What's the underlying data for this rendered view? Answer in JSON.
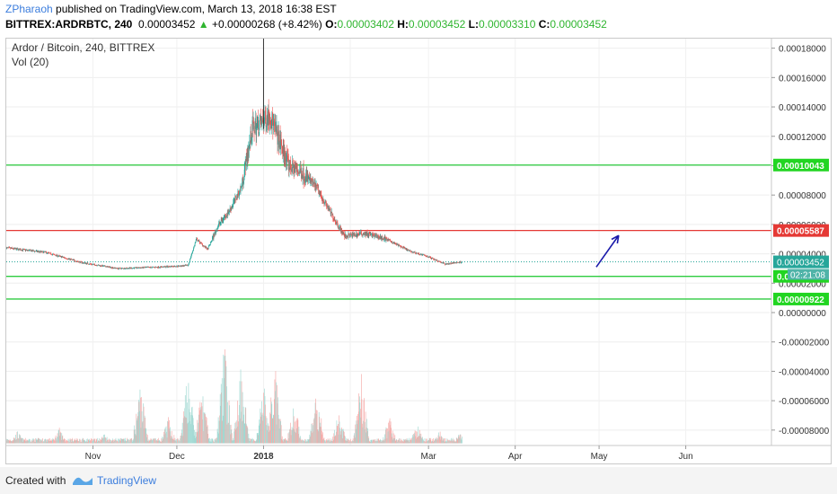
{
  "header": {
    "author": "ZPharaoh",
    "published_text": "published on TradingView.com, March 13, 2018 16:38 EST",
    "symbol": "BITTREX:ARDRBTC, 240",
    "last_price": "0.00003452",
    "triangle": "▲",
    "change": "+0.00000268 (+8.42%)",
    "o_label": "O:",
    "o_value": "0.00003402",
    "h_label": "H:",
    "h_value": "0.00003452",
    "l_label": "L:",
    "l_value": "0.00003310",
    "c_label": "C:",
    "c_value": "0.00003452"
  },
  "legend": {
    "title": "Ardor / Bitcoin, 240, BITTREX",
    "vol": "Vol (20)"
  },
  "footer": {
    "created_with": "Created with",
    "brand": "TradingView"
  },
  "colors": {
    "up": "#26a69a",
    "down": "#ef5350",
    "green_line": "#2ecc40",
    "red_line": "#e53935",
    "arrow": "#1a1aaa",
    "price_tag": "#26a69a"
  },
  "chart_data": {
    "type": "candlestick",
    "x_tick_labels": [
      "Nov",
      "Dec",
      "2018",
      "Mar",
      "Apr",
      "May",
      "Jun"
    ],
    "y_tick_labels": [
      "0.00018000",
      "0.00016000",
      "0.00014000",
      "0.00012000",
      "0.00010000",
      "0.00008000",
      "0.00006000",
      "0.00004000",
      "0.00002000",
      "0.00000000",
      "-0.00002000",
      "-0.00004000",
      "-0.00006000",
      "-0.00008000"
    ],
    "y_tick_values": [
      0.00018,
      0.00016,
      0.00014,
      0.00012,
      0.0001,
      8e-05,
      6e-05,
      4e-05,
      2e-05,
      0,
      -2e-05,
      -4e-05,
      -6e-05,
      -8e-05
    ],
    "ylim": [
      -9.05e-05,
      0.0001865
    ],
    "x_range_months": [
      "Oct 2017",
      "Jul 2018"
    ],
    "price_keypoints": [
      [
        "2017-10-01",
        4.4e-05
      ],
      [
        "2017-10-15",
        4.1e-05
      ],
      [
        "2017-10-28",
        3.4e-05
      ],
      [
        "2017-11-10",
        3e-05
      ],
      [
        "2017-11-25",
        3.1e-05
      ],
      [
        "2017-12-05",
        3.2e-05
      ],
      [
        "2017-12-08",
        5e-05
      ],
      [
        "2017-12-12",
        4.3e-05
      ],
      [
        "2017-12-16",
        6e-05
      ],
      [
        "2017-12-20",
        7e-05
      ],
      [
        "2017-12-24",
        8.5e-05
      ],
      [
        "2017-12-28",
        0.000125
      ],
      [
        "2018-01-01",
        0.00013
      ],
      [
        "2018-01-03",
        0.000135
      ],
      [
        "2018-01-06",
        0.00012
      ],
      [
        "2018-01-10",
        0.0001
      ],
      [
        "2018-01-15",
        9.5e-05
      ],
      [
        "2018-01-20",
        8.5e-05
      ],
      [
        "2018-01-25",
        6.8e-05
      ],
      [
        "2018-01-30",
        5.2e-05
      ],
      [
        "2018-02-06",
        5.4e-05
      ],
      [
        "2018-02-14",
        5e-05
      ],
      [
        "2018-02-22",
        4.2e-05
      ],
      [
        "2018-03-01",
        3.8e-05
      ],
      [
        "2018-03-07",
        3.3e-05
      ],
      [
        "2018-03-13",
        3.45e-05
      ]
    ],
    "peak_high": 0.000187,
    "peak_date": "2018-01-01",
    "horizontal_levels": [
      {
        "value": 0.00010043,
        "label": "0.00010043",
        "color": "#2ecc40"
      },
      {
        "value": 5.587e-05,
        "label": "0.00005587",
        "color": "#e53935"
      },
      {
        "value": 2.465e-05,
        "label": "0.00002465",
        "color": "#2ecc40"
      },
      {
        "value": 9.22e-06,
        "label": "0.00000922",
        "color": "#2ecc40"
      }
    ],
    "current_price": {
      "value": 3.452e-05,
      "label": "0.00003452",
      "countdown": "02:21:08"
    },
    "arrow": {
      "from": [
        "2018-04-30",
        3.1e-05
      ],
      "to": [
        "2018-05-08",
        5.25e-05
      ]
    },
    "volume_peaks": [
      [
        "2017-10-05",
        0.12
      ],
      [
        "2017-10-20",
        0.15
      ],
      [
        "2017-11-05",
        0.1
      ],
      [
        "2017-11-18",
        0.62
      ],
      [
        "2017-11-28",
        0.25
      ],
      [
        "2017-12-05",
        0.7
      ],
      [
        "2017-12-10",
        0.55
      ],
      [
        "2017-12-18",
        1.0
      ],
      [
        "2017-12-24",
        0.85
      ],
      [
        "2018-01-01",
        0.6
      ],
      [
        "2018-01-05",
        0.78
      ],
      [
        "2018-01-12",
        0.4
      ],
      [
        "2018-01-20",
        0.55
      ],
      [
        "2018-01-28",
        0.3
      ],
      [
        "2018-02-05",
        0.72
      ],
      [
        "2018-02-15",
        0.25
      ],
      [
        "2018-02-25",
        0.18
      ],
      [
        "2018-03-05",
        0.12
      ],
      [
        "2018-03-12",
        0.1
      ]
    ]
  }
}
